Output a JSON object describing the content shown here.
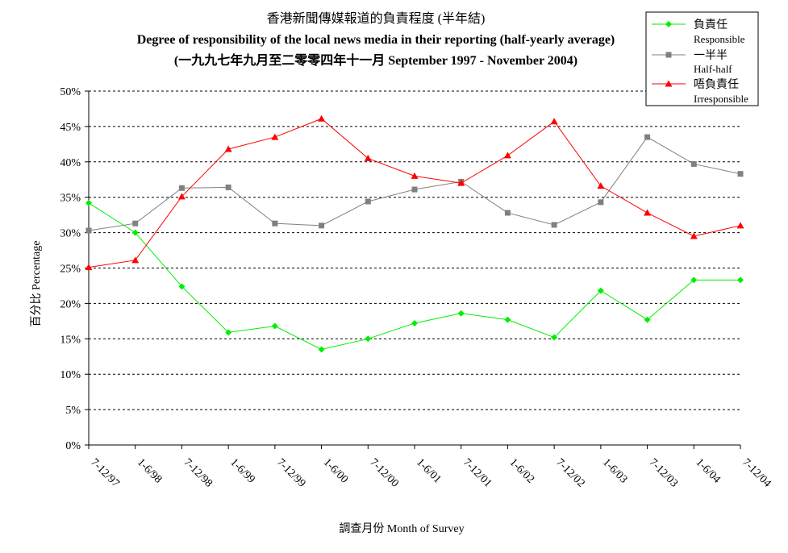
{
  "chart_data": {
    "type": "line",
    "title": "香港新聞傳媒報道的負責程度 (半年結)",
    "subtitle": "Degree of responsibility of the local news media in their reporting (half-yearly average)",
    "subtitle2": "(一九九七年九月至二零零四年十一月 September 1997 - November 2004)",
    "xlabel": "調查月份 Month of Survey",
    "ylabel": "百分比 Percentage",
    "ylim": [
      0,
      50
    ],
    "yticks": [
      "0%",
      "5%",
      "10%",
      "15%",
      "20%",
      "25%",
      "30%",
      "35%",
      "40%",
      "45%",
      "50%"
    ],
    "grid": true,
    "legend_position": "top-right",
    "categories": [
      "7-12/97",
      "1-6/98",
      "7-12/98",
      "1-6/99",
      "7-12/99",
      "1-6/00",
      "7-12/00",
      "1-6/01",
      "7-12/01",
      "1-6/02",
      "7-12/02",
      "1-6/03",
      "7-12/03",
      "1-6/04",
      "7-12/04"
    ],
    "series": [
      {
        "name": "負責任",
        "name_en": "Responsible",
        "color": "#00ee00",
        "marker": "diamond",
        "values": [
          34.2,
          30.0,
          22.4,
          15.9,
          16.8,
          13.5,
          15.0,
          17.2,
          18.6,
          17.7,
          15.2,
          21.8,
          17.7,
          23.3,
          23.3
        ]
      },
      {
        "name": "一半半",
        "name_en": "Half-half",
        "color": "#808080",
        "marker": "square",
        "values": [
          30.3,
          31.3,
          36.3,
          36.4,
          31.3,
          31.0,
          34.4,
          36.1,
          37.2,
          32.8,
          31.1,
          34.3,
          43.5,
          39.7,
          38.3
        ]
      },
      {
        "name": "唔負責任",
        "name_en": "Irresponsible",
        "color": "#ff0000",
        "marker": "triangle",
        "values": [
          25.1,
          26.1,
          35.1,
          41.8,
          43.5,
          46.1,
          40.5,
          38.0,
          37.0,
          40.9,
          45.7,
          36.6,
          32.8,
          29.5,
          31.0
        ]
      }
    ]
  }
}
